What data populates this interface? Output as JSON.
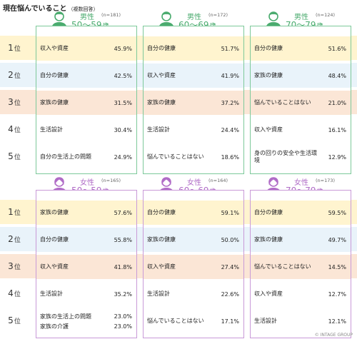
{
  "title": "現在悩んでいること",
  "subtitle": "（複数回答）",
  "footer": "© INTAGE GROUP",
  "rank_suffix": "位",
  "age_suffix": "歳",
  "chart_data": {
    "type": "table",
    "ranks": [
      "1",
      "2",
      "3",
      "4",
      "5"
    ],
    "row_band_colors": [
      "#fff4cf",
      "#e9f3fa",
      "#fbe6d6",
      "#ffffff",
      "#ffffff"
    ],
    "groups": [
      {
        "gender": "男性",
        "n": "(n=181)",
        "age": "50～59",
        "color": "#4aab6e",
        "icon": "male-person-icon",
        "items": [
          [
            "収入や資産",
            "45.9%"
          ],
          [
            "自分の健康",
            "42.5%"
          ],
          [
            "家族の健康",
            "31.5%"
          ],
          [
            "生活設計",
            "30.4%"
          ],
          [
            "自分の生活上の問題",
            "24.9%"
          ]
        ]
      },
      {
        "gender": "男性",
        "n": "(n=172)",
        "age": "60～69",
        "color": "#4aab6e",
        "icon": "male-person-icon",
        "items": [
          [
            "自分の健康",
            "51.7%"
          ],
          [
            "収入や資産",
            "41.9%"
          ],
          [
            "家族の健康",
            "37.2%"
          ],
          [
            "生活設計",
            "24.4%"
          ],
          [
            "悩んでいることはない",
            "18.6%"
          ]
        ]
      },
      {
        "gender": "男性",
        "n": "(n=124)",
        "age": "70～79",
        "color": "#4aab6e",
        "icon": "male-person-icon",
        "items": [
          [
            "自分の健康",
            "51.6%"
          ],
          [
            "家族の健康",
            "48.4%"
          ],
          [
            "悩んでいることはない",
            "21.0%"
          ],
          [
            "収入や資産",
            "16.1%"
          ],
          [
            "身の回りの安全や生活環境",
            "12.9%"
          ]
        ]
      },
      {
        "gender": "女性",
        "n": "(n=165)",
        "age": "50～59",
        "color": "#b06cc7",
        "icon": "female-person-icon",
        "items": [
          [
            "家族の健康",
            "57.6%"
          ],
          [
            "自分の健康",
            "55.8%"
          ],
          [
            "収入や資産",
            "41.8%"
          ],
          [
            "生活設計",
            "35.2%"
          ],
          [
            [
              "家族の生活上の問題",
              "23.0%"
            ],
            [
              "家族の介護",
              "23.0%"
            ]
          ]
        ]
      },
      {
        "gender": "女性",
        "n": "(n=164)",
        "age": "60～69",
        "color": "#b06cc7",
        "icon": "female-person-icon",
        "items": [
          [
            "自分の健康",
            "59.1%"
          ],
          [
            "家族の健康",
            "50.0%"
          ],
          [
            "収入や資産",
            "27.4%"
          ],
          [
            "生活設計",
            "22.6%"
          ],
          [
            "悩んでいることはない",
            "17.1%"
          ]
        ]
      },
      {
        "gender": "女性",
        "n": "(n=173)",
        "age": "70～79",
        "color": "#b06cc7",
        "icon": "female-person-icon",
        "items": [
          [
            "自分の健康",
            "59.5%"
          ],
          [
            "家族の健康",
            "49.7%"
          ],
          [
            "悩んでいることはない",
            "14.5%"
          ],
          [
            "収入や資産",
            "12.7%"
          ],
          [
            "生活設計",
            "12.1%"
          ]
        ]
      }
    ]
  }
}
